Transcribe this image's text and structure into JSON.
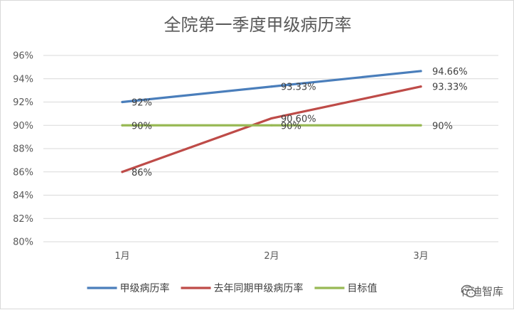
{
  "watermark": {
    "text": "行迪智库",
    "icon": "wechat-icon"
  },
  "chart_data": {
    "type": "line",
    "title": "全院第一季度甲级病历率",
    "categories": [
      "1月",
      "2月",
      "3月"
    ],
    "ylim": [
      80,
      96
    ],
    "yticks": [
      80,
      82,
      84,
      86,
      88,
      90,
      92,
      94,
      96
    ],
    "ytick_labels": [
      "80%",
      "82%",
      "84%",
      "86%",
      "88%",
      "90%",
      "92%",
      "94%",
      "96%"
    ],
    "grid": true,
    "legend_position": "bottom",
    "series": [
      {
        "name": "甲级病历率",
        "color": "#4a7ebb",
        "values": [
          92,
          93.33,
          94.66
        ],
        "labels": [
          "92%",
          "93.33%",
          "94.66%"
        ]
      },
      {
        "name": "去年同期甲级病历率",
        "color": "#be4b48",
        "values": [
          86,
          90.6,
          93.33
        ],
        "labels": [
          "86%",
          "90.60%",
          "93.33%"
        ]
      },
      {
        "name": "目标值",
        "color": "#98b954",
        "values": [
          90,
          90,
          90
        ],
        "labels": [
          "90%",
          "90%",
          "90%"
        ]
      }
    ]
  }
}
